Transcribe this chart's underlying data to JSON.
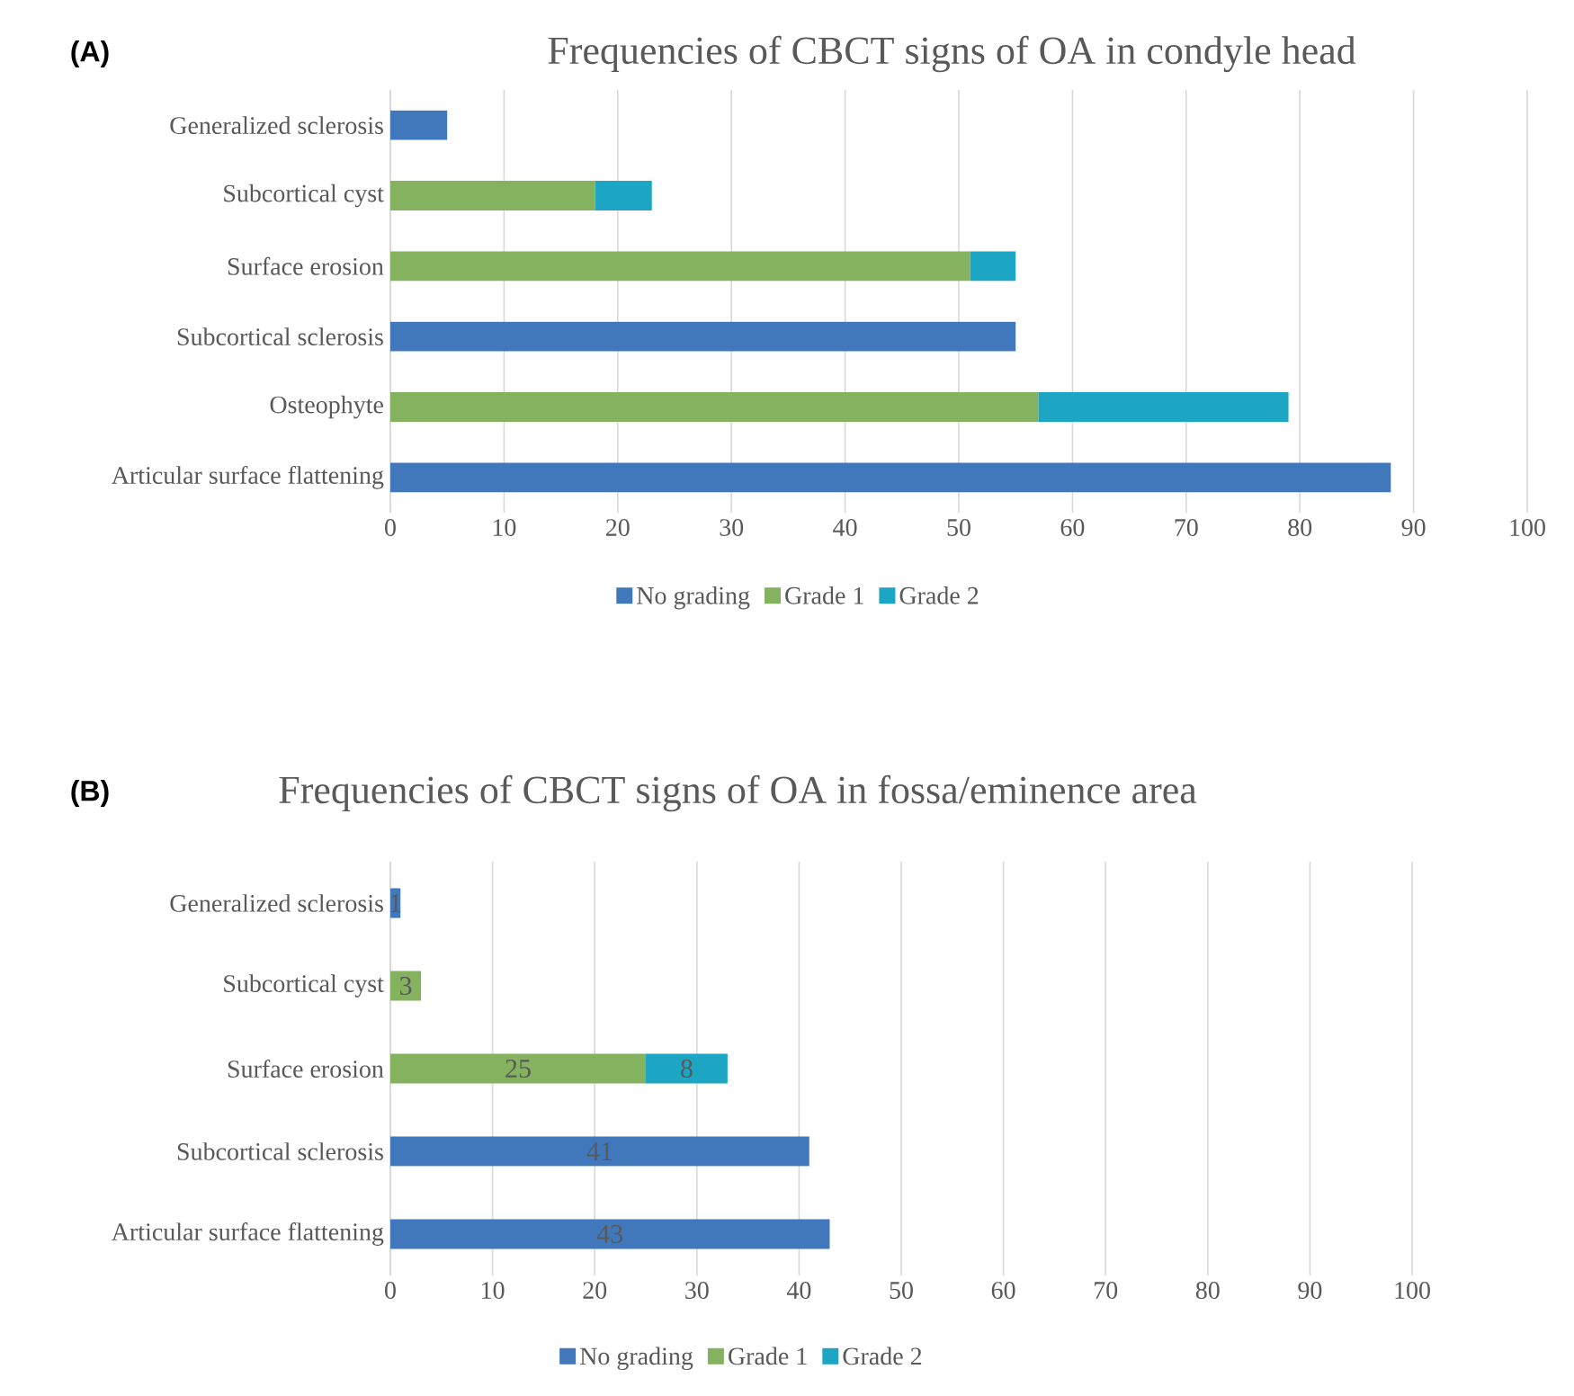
{
  "chart_data": [
    {
      "type": "bar",
      "orientation": "horizontal",
      "stacked": true,
      "title": "Frequencies of CBCT signs of OA in condyle head",
      "annotations": [
        "(A)"
      ],
      "categories": [
        "Generalized sclerosis",
        "Subcortical cyst",
        "Surface erosion",
        "Subcortical sclerosis",
        "Osteophyte",
        "Articular surface flattening"
      ],
      "series": [
        {
          "name": "No grading",
          "color": "#4178bc",
          "values": [
            5,
            null,
            null,
            55,
            null,
            88
          ]
        },
        {
          "name": "Grade 1",
          "color": "#84b25f",
          "values": [
            null,
            18,
            51,
            null,
            57,
            null
          ]
        },
        {
          "name": "Grade 2",
          "color": "#1ca6c4",
          "values": [
            null,
            5,
            4,
            null,
            22,
            null
          ]
        }
      ],
      "xlim": [
        0,
        100
      ],
      "xticks": [
        0,
        10,
        20,
        30,
        40,
        50,
        60,
        70,
        80,
        90,
        100
      ],
      "grid": "x",
      "legend": "bottom"
    },
    {
      "type": "bar",
      "orientation": "horizontal",
      "stacked": true,
      "data_labels": true,
      "title": "Frequencies of CBCT signs of OA in fossa/eminence area",
      "annotations": [
        "(B)"
      ],
      "categories": [
        "Generalized sclerosis",
        "Subcortical cyst",
        "Surface erosion",
        "Subcortical sclerosis",
        "Articular surface flattening"
      ],
      "series": [
        {
          "name": "No grading",
          "color": "#4178bc",
          "values": [
            1,
            null,
            null,
            41,
            43
          ]
        },
        {
          "name": "Grade 1",
          "color": "#84b25f",
          "values": [
            null,
            3,
            25,
            null,
            null
          ]
        },
        {
          "name": "Grade 2",
          "color": "#1ca6c4",
          "values": [
            null,
            null,
            8,
            null,
            null
          ]
        }
      ],
      "xlim": [
        0,
        100
      ],
      "xticks": [
        0,
        10,
        20,
        30,
        40,
        50,
        60,
        70,
        80,
        90,
        100
      ],
      "grid": "x",
      "legend": "bottom"
    }
  ]
}
